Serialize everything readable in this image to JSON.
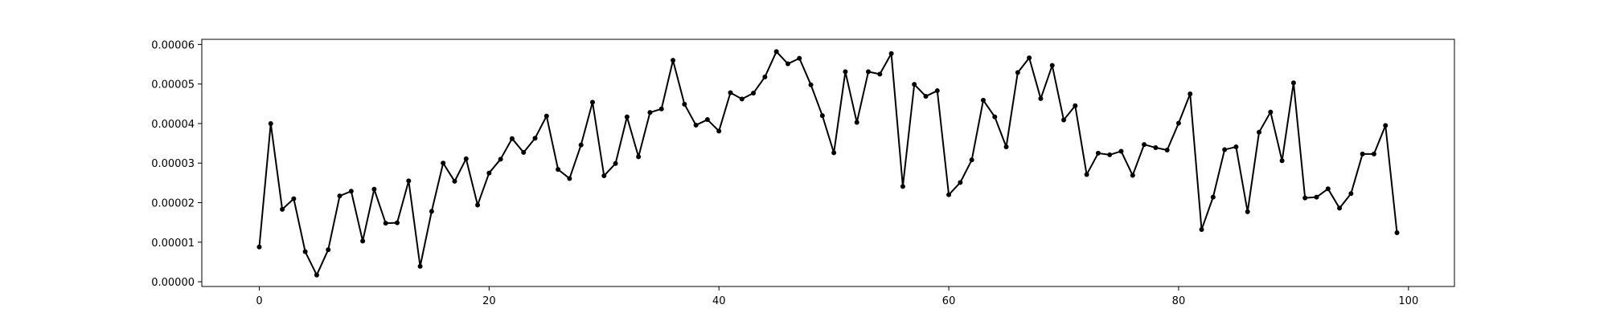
{
  "chart_data": {
    "type": "line",
    "title": "",
    "xlabel": "",
    "ylabel": "",
    "xlim": [
      -5,
      104
    ],
    "ylim": [
      -1.2e-06,
      6.13e-05
    ],
    "grid": false,
    "x_ticks": [
      0,
      20,
      40,
      60,
      80,
      100
    ],
    "x_tick_labels": [
      "0",
      "20",
      "40",
      "60",
      "80",
      "100"
    ],
    "y_ticks": [
      0,
      1e-05,
      2e-05,
      3e-05,
      4e-05,
      5e-05,
      6e-05
    ],
    "y_tick_labels": [
      "0.00000",
      "0.00001",
      "0.00002",
      "0.00003",
      "0.00004",
      "0.00005",
      "0.00006"
    ],
    "series_color": "#000000",
    "series": [
      {
        "x": [
          0,
          1,
          2,
          3,
          4,
          5,
          6,
          7,
          8,
          9,
          10,
          11,
          12,
          13,
          14,
          15,
          16,
          17,
          18,
          19,
          20,
          21,
          22,
          23,
          24,
          25,
          26,
          27,
          28,
          29,
          30,
          31,
          32,
          33,
          34,
          35,
          36,
          37,
          38,
          39,
          40,
          41,
          42,
          43,
          44,
          45,
          46,
          47,
          48,
          49,
          50,
          51,
          52,
          53,
          54,
          55,
          56,
          57,
          58,
          59,
          60,
          61,
          62,
          63,
          64,
          65,
          66,
          67,
          68,
          69,
          70,
          71,
          72,
          73,
          74,
          75,
          76,
          77,
          78,
          79,
          80,
          81,
          82,
          83,
          84,
          85,
          86,
          87,
          88,
          89,
          90,
          91,
          92,
          93,
          94,
          95,
          96,
          97,
          98,
          99
        ],
        "y": [
          8.8e-06,
          4e-05,
          1.83e-05,
          2.1e-05,
          7.6e-06,
          1.7e-06,
          8.1e-06,
          2.17e-05,
          2.29e-05,
          1.03e-05,
          2.34e-05,
          1.48e-05,
          1.49e-05,
          2.55e-05,
          3.9e-06,
          1.78e-05,
          3e-05,
          2.54e-05,
          3.11e-05,
          1.94e-05,
          2.75e-05,
          3.1e-05,
          3.62e-05,
          3.27e-05,
          3.63e-05,
          4.19e-05,
          2.84e-05,
          2.61e-05,
          3.46e-05,
          4.54e-05,
          2.68e-05,
          2.99e-05,
          4.17e-05,
          3.16e-05,
          4.28e-05,
          4.37e-05,
          5.6e-05,
          4.49e-05,
          3.96e-05,
          4.1e-05,
          3.81e-05,
          4.78e-05,
          4.62e-05,
          4.77e-05,
          5.18e-05,
          5.82e-05,
          5.51e-05,
          5.65e-05,
          4.98e-05,
          4.2e-05,
          3.26e-05,
          5.31e-05,
          4.03e-05,
          5.31e-05,
          5.25e-05,
          5.77e-05,
          2.41e-05,
          4.99e-05,
          4.69e-05,
          4.83e-05,
          2.2e-05,
          2.51e-05,
          3.08e-05,
          4.59e-05,
          4.17e-05,
          3.41e-05,
          5.29e-05,
          5.66e-05,
          4.63e-05,
          5.47e-05,
          4.09e-05,
          4.45e-05,
          2.71e-05,
          3.25e-05,
          3.21e-05,
          3.3e-05,
          2.69e-05,
          3.47e-05,
          3.39e-05,
          3.33e-05,
          4.01e-05,
          4.75e-05,
          1.32e-05,
          2.14e-05,
          3.34e-05,
          3.41e-05,
          1.77e-05,
          3.78e-05,
          4.29e-05,
          3.06e-05,
          5.03e-05,
          2.12e-05,
          2.14e-05,
          2.35e-05,
          1.86e-05,
          2.23e-05,
          3.23e-05,
          3.23e-05,
          3.95e-05,
          1.24e-05
        ]
      }
    ]
  }
}
